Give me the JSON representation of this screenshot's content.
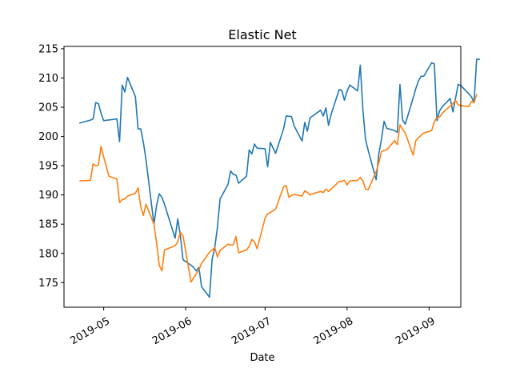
{
  "chart_data": {
    "type": "line",
    "title": "Elastic Net",
    "xlabel": "Date",
    "ylabel": "",
    "xlim": [
      "2019-04-16",
      "2019-09-13"
    ],
    "ylim": [
      170.8,
      215.4
    ],
    "grid": false,
    "legend": "none",
    "x_ticks": [
      {
        "date": "2019-05-01",
        "label": "2019-05"
      },
      {
        "date": "2019-06-01",
        "label": "2019-06"
      },
      {
        "date": "2019-07-01",
        "label": "2019-07"
      },
      {
        "date": "2019-08-01",
        "label": "2019-08"
      },
      {
        "date": "2019-09-01",
        "label": "2019-09"
      }
    ],
    "y_ticks": [
      175,
      180,
      185,
      190,
      195,
      200,
      205,
      210,
      215
    ],
    "series": [
      {
        "color": "#1f77b4",
        "points": [
          [
            "2019-04-22",
            202.3
          ],
          [
            "2019-04-26",
            202.8
          ],
          [
            "2019-04-27",
            203.0
          ],
          [
            "2019-04-28",
            205.8
          ],
          [
            "2019-04-29",
            205.6
          ],
          [
            "2019-04-30",
            204.0
          ],
          [
            "2019-05-01",
            202.7
          ],
          [
            "2019-05-06",
            203.0
          ],
          [
            "2019-05-07",
            199.1
          ],
          [
            "2019-05-08",
            208.8
          ],
          [
            "2019-05-09",
            207.6
          ],
          [
            "2019-05-10",
            210.1
          ],
          [
            "2019-05-13",
            206.8
          ],
          [
            "2019-05-14",
            201.3
          ],
          [
            "2019-05-15",
            201.3
          ],
          [
            "2019-05-16",
            199.0
          ],
          [
            "2019-05-17",
            196.0
          ],
          [
            "2019-05-20",
            185.0
          ],
          [
            "2019-05-21",
            188.2
          ],
          [
            "2019-05-22",
            190.2
          ],
          [
            "2019-05-23",
            189.6
          ],
          [
            "2019-05-24",
            188.4
          ],
          [
            "2019-05-28",
            182.6
          ],
          [
            "2019-05-29",
            185.9
          ],
          [
            "2019-05-30",
            183.0
          ],
          [
            "2019-05-31",
            178.9
          ],
          [
            "2019-06-03",
            178.0
          ],
          [
            "2019-06-04",
            177.6
          ],
          [
            "2019-06-05",
            177.0
          ],
          [
            "2019-06-06",
            177.6
          ],
          [
            "2019-06-07",
            174.3
          ],
          [
            "2019-06-10",
            172.5
          ],
          [
            "2019-06-11",
            179.0
          ],
          [
            "2019-06-12",
            181.0
          ],
          [
            "2019-06-13",
            184.5
          ],
          [
            "2019-06-14",
            189.3
          ],
          [
            "2019-06-17",
            191.8
          ],
          [
            "2019-06-18",
            194.1
          ],
          [
            "2019-06-19",
            193.5
          ],
          [
            "2019-06-20",
            193.4
          ],
          [
            "2019-06-21",
            192.0
          ],
          [
            "2019-06-24",
            193.2
          ],
          [
            "2019-06-25",
            197.7
          ],
          [
            "2019-06-26",
            197.0
          ],
          [
            "2019-06-27",
            198.7
          ],
          [
            "2019-06-28",
            198.0
          ],
          [
            "2019-07-01",
            197.9
          ],
          [
            "2019-07-02",
            194.8
          ],
          [
            "2019-07-03",
            199.0
          ],
          [
            "2019-07-05",
            197.1
          ],
          [
            "2019-07-08",
            201.3
          ],
          [
            "2019-07-09",
            203.5
          ],
          [
            "2019-07-11",
            203.4
          ],
          [
            "2019-07-12",
            201.8
          ],
          [
            "2019-07-15",
            199.2
          ],
          [
            "2019-07-16",
            202.4
          ],
          [
            "2019-07-17",
            200.9
          ],
          [
            "2019-07-18",
            203.2
          ],
          [
            "2019-07-19",
            203.5
          ],
          [
            "2019-07-22",
            204.5
          ],
          [
            "2019-07-23",
            203.5
          ],
          [
            "2019-07-24",
            204.9
          ],
          [
            "2019-07-25",
            201.9
          ],
          [
            "2019-07-26",
            203.8
          ],
          [
            "2019-07-29",
            208.0
          ],
          [
            "2019-07-30",
            207.9
          ],
          [
            "2019-07-31",
            206.2
          ],
          [
            "2019-08-01",
            207.7
          ],
          [
            "2019-08-02",
            208.8
          ],
          [
            "2019-08-05",
            207.8
          ],
          [
            "2019-08-06",
            212.2
          ],
          [
            "2019-08-07",
            204.5
          ],
          [
            "2019-08-08",
            199.4
          ],
          [
            "2019-08-09",
            197.6
          ],
          [
            "2019-08-12",
            192.6
          ],
          [
            "2019-08-13",
            197.0
          ],
          [
            "2019-08-14",
            199.5
          ],
          [
            "2019-08-15",
            202.6
          ],
          [
            "2019-08-16",
            201.4
          ],
          [
            "2019-08-19",
            201.0
          ],
          [
            "2019-08-20",
            200.7
          ],
          [
            "2019-08-21",
            208.9
          ],
          [
            "2019-08-22",
            202.8
          ],
          [
            "2019-08-23",
            202.1
          ],
          [
            "2019-08-26",
            206.6
          ],
          [
            "2019-08-27",
            208.2
          ],
          [
            "2019-08-28",
            209.5
          ],
          [
            "2019-08-29",
            210.3
          ],
          [
            "2019-08-30",
            210.3
          ],
          [
            "2019-09-02",
            212.6
          ],
          [
            "2019-09-03",
            212.4
          ],
          [
            "2019-09-04",
            202.7
          ],
          [
            "2019-09-05",
            204.4
          ],
          [
            "2019-09-06",
            205.1
          ],
          [
            "2019-09-09",
            206.5
          ],
          [
            "2019-09-10",
            204.2
          ],
          [
            "2019-09-11",
            206.5
          ],
          [
            "2019-09-12",
            208.9
          ],
          [
            "2019-09-13",
            208.7
          ],
          [
            "2019-09-16",
            207.3
          ],
          [
            "2019-09-17",
            206.8
          ],
          [
            "2019-09-18",
            205.8
          ],
          [
            "2019-09-19",
            213.2
          ],
          [
            "2019-09-20",
            213.2
          ]
        ]
      },
      {
        "color": "#ff7f0e",
        "points": [
          [
            "2019-04-22",
            192.4
          ],
          [
            "2019-04-26",
            192.5
          ],
          [
            "2019-04-27",
            195.3
          ],
          [
            "2019-04-28",
            195.0
          ],
          [
            "2019-04-29",
            195.1
          ],
          [
            "2019-04-30",
            198.3
          ],
          [
            "2019-05-01",
            196.5
          ],
          [
            "2019-05-03",
            193.2
          ],
          [
            "2019-05-06",
            192.7
          ],
          [
            "2019-05-07",
            188.7
          ],
          [
            "2019-05-08",
            189.2
          ],
          [
            "2019-05-09",
            189.3
          ],
          [
            "2019-05-10",
            189.8
          ],
          [
            "2019-05-13",
            190.3
          ],
          [
            "2019-05-14",
            191.2
          ],
          [
            "2019-05-15",
            188.0
          ],
          [
            "2019-05-16",
            186.5
          ],
          [
            "2019-05-17",
            188.4
          ],
          [
            "2019-05-20",
            185.0
          ],
          [
            "2019-05-21",
            181.8
          ],
          [
            "2019-05-22",
            178.0
          ],
          [
            "2019-05-23",
            177.0
          ],
          [
            "2019-05-24",
            180.6
          ],
          [
            "2019-05-28",
            181.3
          ],
          [
            "2019-05-29",
            182.0
          ],
          [
            "2019-05-30",
            183.6
          ],
          [
            "2019-05-31",
            183.0
          ],
          [
            "2019-06-03",
            175.1
          ],
          [
            "2019-06-04",
            175.8
          ],
          [
            "2019-06-05",
            176.5
          ],
          [
            "2019-06-06",
            177.2
          ],
          [
            "2019-06-07",
            178.3
          ],
          [
            "2019-06-10",
            180.2
          ],
          [
            "2019-06-11",
            180.6
          ],
          [
            "2019-06-12",
            181.0
          ],
          [
            "2019-06-13",
            179.4
          ],
          [
            "2019-06-14",
            180.5
          ],
          [
            "2019-06-17",
            181.6
          ],
          [
            "2019-06-18",
            181.4
          ],
          [
            "2019-06-19",
            181.5
          ],
          [
            "2019-06-20",
            182.9
          ],
          [
            "2019-06-21",
            180.1
          ],
          [
            "2019-06-24",
            180.6
          ],
          [
            "2019-06-25",
            181.2
          ],
          [
            "2019-06-26",
            182.4
          ],
          [
            "2019-06-27",
            182.0
          ],
          [
            "2019-06-28",
            180.8
          ],
          [
            "2019-07-01",
            186.0
          ],
          [
            "2019-07-02",
            186.8
          ],
          [
            "2019-07-03",
            187.0
          ],
          [
            "2019-07-05",
            187.6
          ],
          [
            "2019-07-08",
            191.4
          ],
          [
            "2019-07-09",
            191.6
          ],
          [
            "2019-07-10",
            189.6
          ],
          [
            "2019-07-11",
            189.9
          ],
          [
            "2019-07-12",
            190.1
          ],
          [
            "2019-07-15",
            189.8
          ],
          [
            "2019-07-16",
            190.7
          ],
          [
            "2019-07-17",
            190.4
          ],
          [
            "2019-07-18",
            190.0
          ],
          [
            "2019-07-19",
            190.2
          ],
          [
            "2019-07-22",
            190.6
          ],
          [
            "2019-07-23",
            190.4
          ],
          [
            "2019-07-24",
            191.0
          ],
          [
            "2019-07-25",
            190.6
          ],
          [
            "2019-07-26",
            191.0
          ],
          [
            "2019-07-29",
            192.3
          ],
          [
            "2019-07-30",
            192.3
          ],
          [
            "2019-07-31",
            192.5
          ],
          [
            "2019-08-01",
            191.7
          ],
          [
            "2019-08-02",
            192.4
          ],
          [
            "2019-08-05",
            192.5
          ],
          [
            "2019-08-06",
            193.0
          ],
          [
            "2019-08-07",
            192.4
          ],
          [
            "2019-08-08",
            191.0
          ],
          [
            "2019-08-09",
            190.9
          ],
          [
            "2019-08-12",
            194.0
          ],
          [
            "2019-08-13",
            195.5
          ],
          [
            "2019-08-14",
            197.4
          ],
          [
            "2019-08-15",
            197.6
          ],
          [
            "2019-08-16",
            197.7
          ],
          [
            "2019-08-19",
            199.3
          ],
          [
            "2019-08-20",
            198.6
          ],
          [
            "2019-08-21",
            202.0
          ],
          [
            "2019-08-22",
            201.2
          ],
          [
            "2019-08-23",
            200.6
          ],
          [
            "2019-08-26",
            196.8
          ],
          [
            "2019-08-27",
            199.3
          ],
          [
            "2019-08-28",
            199.8
          ],
          [
            "2019-08-29",
            200.2
          ],
          [
            "2019-08-30",
            200.6
          ],
          [
            "2019-09-02",
            201.0
          ],
          [
            "2019-09-03",
            202.5
          ],
          [
            "2019-09-04",
            203.3
          ],
          [
            "2019-09-05",
            203.3
          ],
          [
            "2019-09-06",
            204.0
          ],
          [
            "2019-09-09",
            205.2
          ],
          [
            "2019-09-10",
            205.6
          ],
          [
            "2019-09-11",
            206.2
          ],
          [
            "2019-09-12",
            205.4
          ],
          [
            "2019-09-13",
            205.3
          ],
          [
            "2019-09-16",
            205.1
          ],
          [
            "2019-09-17",
            206.0
          ],
          [
            "2019-09-18",
            205.8
          ],
          [
            "2019-09-19",
            207.2
          ]
        ]
      }
    ]
  }
}
